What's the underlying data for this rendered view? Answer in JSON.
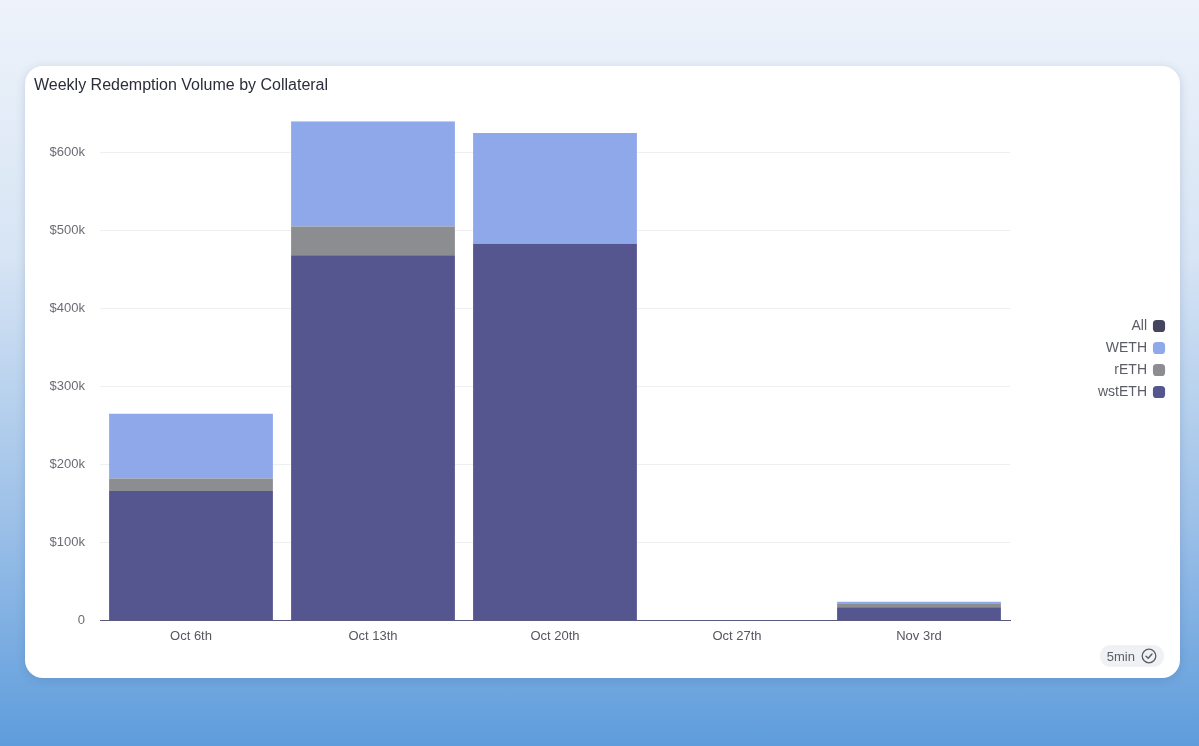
{
  "chart_data": {
    "type": "bar",
    "title": "Weekly Redemption Volume by Collateral",
    "categories": [
      "Oct 6th",
      "Oct 13th",
      "Oct 20th",
      "Oct 27th",
      "Nov 3rd"
    ],
    "series": [
      {
        "name": "wstETH",
        "color": "#55558f",
        "values": [
          166000,
          468000,
          483000,
          0,
          17000
        ]
      },
      {
        "name": "rETH",
        "color": "#8c8d90",
        "values": [
          16000,
          37000,
          0,
          0,
          4000
        ]
      },
      {
        "name": "WETH",
        "color": "#8fa8ea",
        "values": [
          83000,
          135000,
          142000,
          0,
          3000
        ]
      },
      {
        "name": "All",
        "color": "#44445e",
        "values": [
          null,
          null,
          null,
          null,
          null
        ]
      }
    ],
    "stacked": true,
    "ylim": [
      0,
      640000
    ],
    "yticks": [
      0,
      {
        "value": 100000,
        "label": "$100k"
      },
      {
        "value": 200000,
        "label": "$200k"
      },
      {
        "value": 300000,
        "label": "$300k"
      },
      {
        "value": 400000,
        "label": "$400k"
      },
      {
        "value": 500000,
        "label": "$500k"
      },
      {
        "value": 600000,
        "label": "$600k"
      }
    ],
    "grid": "y",
    "legend": "right",
    "annotations": [
      "5min"
    ]
  }
}
